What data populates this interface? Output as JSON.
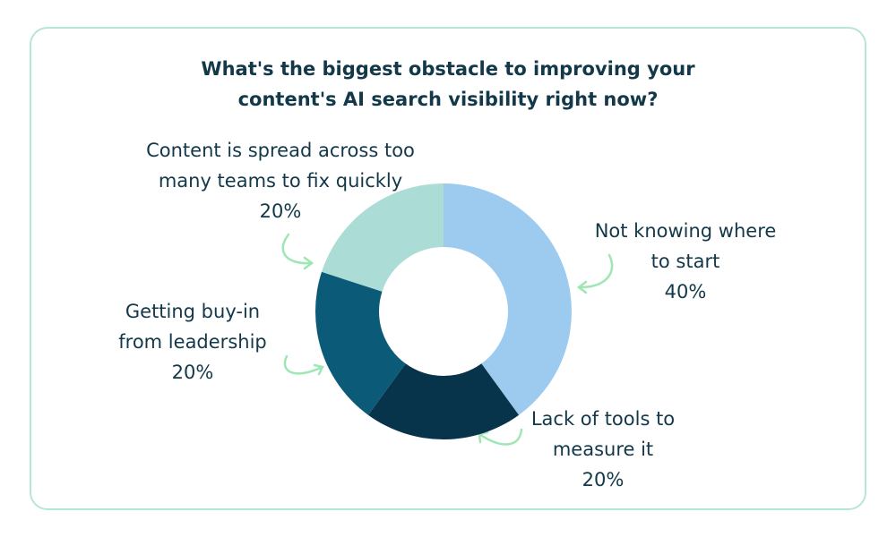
{
  "chart_data": {
    "type": "donut",
    "title": "What's the biggest obstacle to improving your\ncontent's AI search visibility right now?",
    "categories": [
      "Not knowing where\nto start",
      "Lack of tools to\nmeasure it",
      "Getting buy-in\nfrom leadership",
      "Content is spread across too\nmany teams to fix quickly"
    ],
    "values": [
      40,
      20,
      20,
      20
    ],
    "value_labels": [
      "40%",
      "20%",
      "20%",
      "20%"
    ],
    "colors": [
      "#9ccbef",
      "#07344a",
      "#0b5a78",
      "#acdcd6"
    ]
  }
}
